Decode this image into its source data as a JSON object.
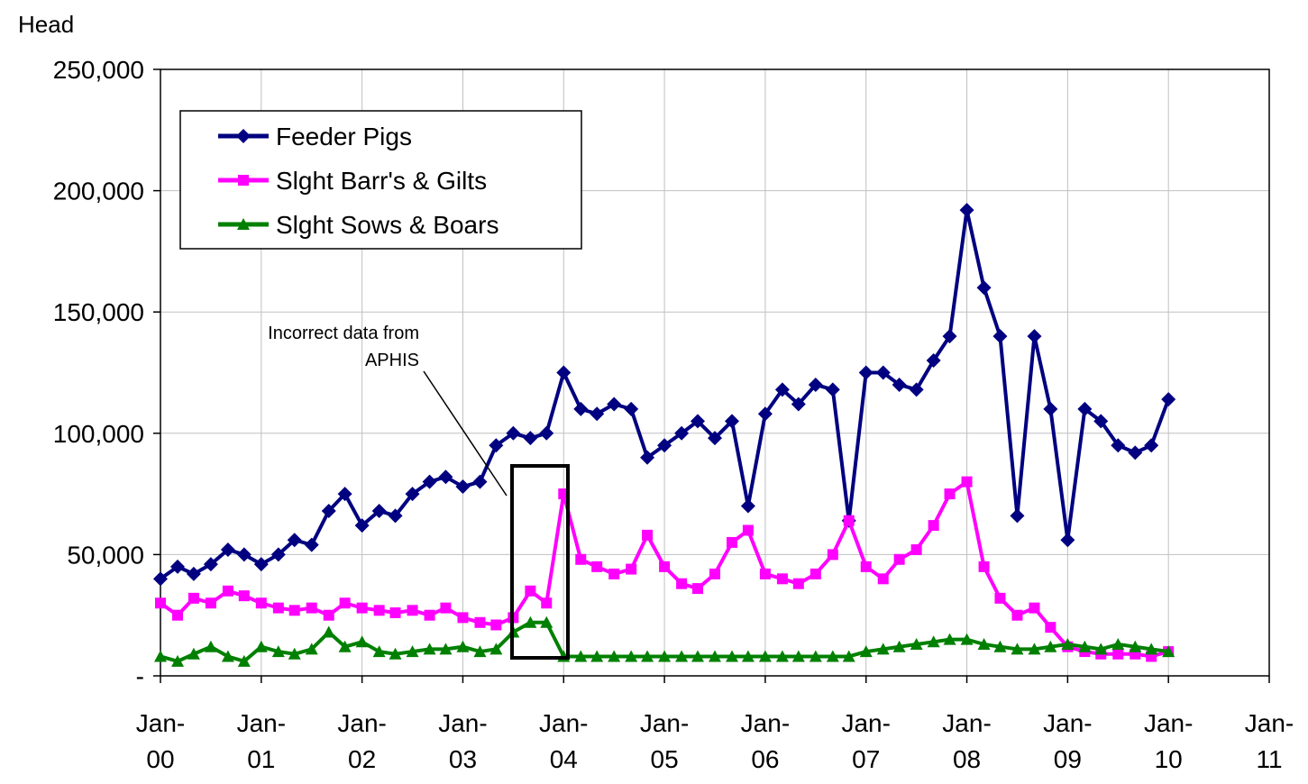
{
  "chart_data": {
    "type": "line",
    "y_label": "Head",
    "annotation": [
      "Incorrect data from",
      "APHIS"
    ],
    "x": [
      0,
      0.17,
      0.33,
      0.5,
      0.67,
      0.83,
      1,
      1.17,
      1.33,
      1.5,
      1.67,
      1.83,
      2,
      2.17,
      2.33,
      2.5,
      2.67,
      2.83,
      3,
      3.17,
      3.33,
      3.5,
      3.67,
      3.83,
      4,
      4.17,
      4.33,
      4.5,
      4.67,
      4.83,
      5,
      5.17,
      5.33,
      5.5,
      5.67,
      5.83,
      6,
      6.17,
      6.33,
      6.5,
      6.67,
      6.83,
      7,
      7.17,
      7.33,
      7.5,
      7.67,
      7.83,
      8,
      8.17,
      8.33,
      8.5,
      8.67,
      8.83,
      9,
      9.17,
      9.33,
      9.5,
      9.67,
      9.83,
      10
    ],
    "series": [
      {
        "name": "Feeder Pigs",
        "color": "#000080",
        "marker": "diamond",
        "values": [
          40000,
          45000,
          42000,
          46000,
          52000,
          50000,
          46000,
          50000,
          56000,
          54000,
          68000,
          75000,
          62000,
          68000,
          66000,
          75000,
          80000,
          82000,
          78000,
          80000,
          95000,
          100000,
          98000,
          100000,
          125000,
          110000,
          108000,
          112000,
          110000,
          90000,
          95000,
          100000,
          105000,
          98000,
          105000,
          70000,
          108000,
          118000,
          112000,
          120000,
          118000,
          64000,
          125000,
          125000,
          120000,
          118000,
          130000,
          140000,
          192000,
          160000,
          140000,
          66000,
          140000,
          110000,
          56000,
          110000,
          105000,
          95000,
          92000,
          95000,
          114000
        ]
      },
      {
        "name": "Slght Barr's & Gilts",
        "color": "#FF00FF",
        "marker": "square",
        "values": [
          30000,
          25000,
          32000,
          30000,
          35000,
          33000,
          30000,
          28000,
          27000,
          28000,
          25000,
          30000,
          28000,
          27000,
          26000,
          27000,
          25000,
          28000,
          24000,
          22000,
          21000,
          24000,
          35000,
          30000,
          75000,
          48000,
          45000,
          42000,
          44000,
          58000,
          45000,
          38000,
          36000,
          42000,
          55000,
          60000,
          42000,
          40000,
          38000,
          42000,
          50000,
          64000,
          45000,
          40000,
          48000,
          52000,
          62000,
          75000,
          80000,
          45000,
          32000,
          25000,
          28000,
          20000,
          12000,
          10000,
          9000,
          9000,
          9000,
          8000,
          10000
        ]
      },
      {
        "name": "Slght Sows & Boars",
        "color": "#008000",
        "marker": "triangle",
        "values": [
          8000,
          6000,
          9000,
          12000,
          8000,
          6000,
          12000,
          10000,
          9000,
          11000,
          18000,
          12000,
          14000,
          10000,
          9000,
          10000,
          11000,
          11000,
          12000,
          10000,
          11000,
          18000,
          22000,
          22000,
          8000,
          8000,
          8000,
          8000,
          8000,
          8000,
          8000,
          8000,
          8000,
          8000,
          8000,
          8000,
          8000,
          8000,
          8000,
          8000,
          8000,
          8000,
          10000,
          11000,
          12000,
          13000,
          14000,
          15000,
          15000,
          13000,
          12000,
          11000,
          11000,
          12000,
          13000,
          12000,
          11000,
          13000,
          12000,
          11000,
          10000
        ]
      }
    ],
    "xlim": [
      0,
      11
    ],
    "xticks": [
      {
        "value": 0,
        "label": "Jan-00"
      },
      {
        "value": 1,
        "label": "Jan-01"
      },
      {
        "value": 2,
        "label": "Jan-02"
      },
      {
        "value": 3,
        "label": "Jan-03"
      },
      {
        "value": 4,
        "label": "Jan-04"
      },
      {
        "value": 5,
        "label": "Jan-05"
      },
      {
        "value": 6,
        "label": "Jan-06"
      },
      {
        "value": 7,
        "label": "Jan-07"
      },
      {
        "value": 8,
        "label": "Jan-08"
      },
      {
        "value": 9,
        "label": "Jan-09"
      },
      {
        "value": 10,
        "label": "Jan-10"
      },
      {
        "value": 11,
        "label": "Jan-11"
      }
    ],
    "ylim": [
      0,
      250000
    ],
    "yticks": [
      {
        "value": 0,
        "label": "-"
      },
      {
        "value": 50000,
        "label": "50,000"
      },
      {
        "value": 100000,
        "label": "100,000"
      },
      {
        "value": 150000,
        "label": "150,000"
      },
      {
        "value": 200000,
        "label": "200,000"
      },
      {
        "value": 250000,
        "label": "250,000"
      }
    ],
    "grid": true
  }
}
